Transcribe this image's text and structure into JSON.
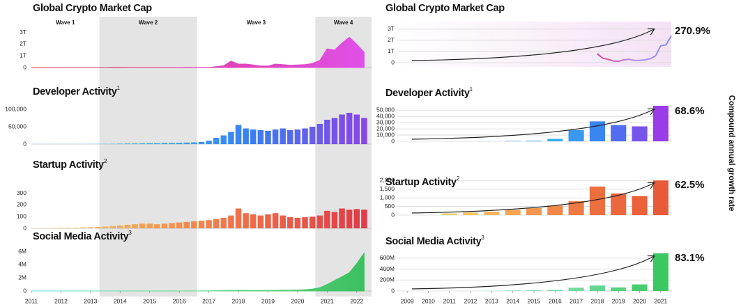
{
  "side_label": "Compound annual growth rate",
  "waves": [
    {
      "label": "Wave 1",
      "start": 2011,
      "end": 2013.3,
      "shaded": false
    },
    {
      "label": "Wave 2",
      "start": 2013.3,
      "end": 2016.6,
      "shaded": true
    },
    {
      "label": "Wave 3",
      "start": 2016.6,
      "end": 2020.6,
      "shaded": false
    },
    {
      "label": "Wave 4",
      "start": 2020.6,
      "end": 2022.5,
      "shaded": true
    }
  ],
  "chart_data": [
    {
      "type": "area",
      "title": "Global Crypto Market Cap",
      "x": [
        2011,
        2011.25,
        2011.5,
        2011.75,
        2012,
        2012.25,
        2012.5,
        2012.75,
        2013,
        2013.25,
        2013.5,
        2013.75,
        2014,
        2014.25,
        2014.5,
        2014.75,
        2015,
        2015.25,
        2015.5,
        2015.75,
        2016,
        2016.25,
        2016.5,
        2016.75,
        2017,
        2017.25,
        2017.5,
        2017.75,
        2018,
        2018.25,
        2018.5,
        2018.75,
        2019,
        2019.25,
        2019.5,
        2019.75,
        2020,
        2020.25,
        2020.5,
        2020.75,
        2021,
        2021.25,
        2021.5,
        2021.75,
        2022,
        2022.25
      ],
      "values": [
        0.001,
        0.001,
        0.001,
        0.001,
        0.001,
        0.001,
        0.002,
        0.002,
        0.002,
        0.002,
        0.002,
        0.01,
        0.01,
        0.008,
        0.006,
        0.005,
        0.004,
        0.004,
        0.004,
        0.005,
        0.007,
        0.01,
        0.012,
        0.015,
        0.02,
        0.08,
        0.15,
        0.55,
        0.3,
        0.3,
        0.22,
        0.13,
        0.13,
        0.3,
        0.25,
        0.2,
        0.22,
        0.25,
        0.35,
        0.6,
        1.6,
        1.5,
        2.1,
        2.6,
        2.0,
        1.3
      ],
      "color_stops": [
        "#d6343c",
        "#e040a8",
        "#e050e8"
      ],
      "xlim": [
        2011,
        2022.5
      ],
      "ylim": [
        0,
        3.4
      ],
      "yticks": [
        0,
        {
          "value": 1,
          "label": "1T"
        },
        {
          "value": 2,
          "label": "2T"
        },
        {
          "value": 3,
          "label": "3T"
        }
      ],
      "grid": false
    },
    {
      "type": "bar",
      "title": "Developer Activity",
      "note_ref": "1",
      "x": [
        2011,
        2011.25,
        2011.5,
        2011.75,
        2012,
        2012.25,
        2012.5,
        2012.75,
        2013,
        2013.25,
        2013.5,
        2013.75,
        2014,
        2014.25,
        2014.5,
        2014.75,
        2015,
        2015.25,
        2015.5,
        2015.75,
        2016,
        2016.25,
        2016.5,
        2016.75,
        2017,
        2017.25,
        2017.5,
        2017.75,
        2018,
        2018.25,
        2018.5,
        2018.75,
        2019,
        2019.25,
        2019.5,
        2019.75,
        2020,
        2020.25,
        2020.5,
        2020.75,
        2021,
        2021.25,
        2021.5,
        2021.75,
        2022,
        2022.25
      ],
      "values": [
        200,
        200,
        300,
        300,
        400,
        400,
        500,
        500,
        600,
        700,
        800,
        1000,
        1500,
        2000,
        2000,
        2500,
        3000,
        3000,
        3500,
        3500,
        4000,
        4500,
        5000,
        6000,
        10000,
        18000,
        25000,
        35000,
        55000,
        45000,
        42000,
        40000,
        38000,
        42000,
        45000,
        40000,
        42000,
        45000,
        50000,
        58000,
        70000,
        75000,
        85000,
        90000,
        85000,
        75000
      ],
      "color_stops": [
        "#6fd3f5",
        "#38b4f0",
        "#3a7ef0",
        "#8a44e8"
      ],
      "xlim": [
        2011,
        2022.5
      ],
      "ylim": [
        0,
        114000
      ],
      "yticks": [
        0,
        {
          "value": 50000,
          "label": "50,000"
        },
        {
          "value": 100000,
          "label": "100,000"
        }
      ],
      "grid": false
    },
    {
      "type": "bar",
      "title": "Startup Activity",
      "note_ref": "2",
      "x": [
        2011,
        2011.25,
        2011.5,
        2011.75,
        2012,
        2012.25,
        2012.5,
        2012.75,
        2013,
        2013.25,
        2013.5,
        2013.75,
        2014,
        2014.25,
        2014.5,
        2014.75,
        2015,
        2015.25,
        2015.5,
        2015.75,
        2016,
        2016.25,
        2016.5,
        2016.75,
        2017,
        2017.25,
        2017.5,
        2017.75,
        2018,
        2018.25,
        2018.5,
        2018.75,
        2019,
        2019.25,
        2019.5,
        2019.75,
        2020,
        2020.25,
        2020.5,
        2020.75,
        2021,
        2021.25,
        2021.5,
        2021.75,
        2022,
        2022.25
      ],
      "values": [
        2,
        3,
        3,
        4,
        5,
        6,
        6,
        8,
        10,
        12,
        15,
        20,
        25,
        30,
        35,
        40,
        40,
        35,
        40,
        45,
        50,
        55,
        60,
        65,
        70,
        80,
        90,
        110,
        170,
        130,
        120,
        110,
        120,
        130,
        110,
        95,
        90,
        95,
        100,
        110,
        150,
        140,
        170,
        160,
        165,
        160
      ],
      "color_stops": [
        "#f8d070",
        "#f5a050",
        "#ee6a48",
        "#e23a48"
      ],
      "xlim": [
        2011,
        2022.5
      ],
      "ylim": [
        0,
        340
      ],
      "yticks": [
        0,
        100,
        200,
        300
      ],
      "grid": false
    },
    {
      "type": "area",
      "title": "Social Media Activity",
      "note_ref": "3",
      "x": [
        2011,
        2011.25,
        2011.5,
        2011.75,
        2012,
        2012.25,
        2012.5,
        2012.75,
        2013,
        2013.25,
        2013.5,
        2013.75,
        2014,
        2014.25,
        2014.5,
        2014.75,
        2015,
        2015.25,
        2015.5,
        2015.75,
        2016,
        2016.25,
        2016.5,
        2016.75,
        2017,
        2017.25,
        2017.5,
        2017.75,
        2018,
        2018.25,
        2018.5,
        2018.75,
        2019,
        2019.25,
        2019.5,
        2019.75,
        2020,
        2020.25,
        2020.5,
        2020.75,
        2021,
        2021.25,
        2021.5,
        2021.75,
        2022,
        2022.25
      ],
      "values": [
        0.01,
        0.01,
        0.01,
        0.01,
        0.01,
        0.01,
        0.01,
        0.01,
        0.01,
        0.01,
        0.01,
        0.01,
        0.01,
        0.01,
        0.01,
        0.01,
        0.01,
        0.01,
        0.01,
        0.01,
        0.01,
        0.01,
        0.01,
        0.01,
        0.03,
        0.05,
        0.08,
        0.1,
        0.12,
        0.1,
        0.08,
        0.08,
        0.1,
        0.1,
        0.12,
        0.12,
        0.15,
        0.2,
        0.3,
        0.5,
        1.0,
        1.6,
        2.2,
        2.8,
        4.2,
        5.8
      ],
      "color_stops": [
        "#7ee0d8",
        "#6ad890",
        "#3cc060"
      ],
      "xlim": [
        2011,
        2022.5
      ],
      "ylim": [
        0,
        6.5
      ],
      "yticks": [
        0,
        {
          "value": 2,
          "label": "2M"
        },
        {
          "value": 4,
          "label": "4M"
        },
        {
          "value": 6,
          "label": "6M"
        }
      ],
      "xticks": [
        2011,
        2012,
        2013,
        2014,
        2015,
        2016,
        2017,
        2018,
        2019,
        2020,
        2021,
        2022
      ],
      "grid": false
    },
    {
      "type": "line",
      "title": "Global Crypto Market Cap",
      "cagr": "270.9%",
      "x": [
        2018,
        2018.25,
        2018.5,
        2018.75,
        2019,
        2019.25,
        2019.5,
        2019.75,
        2020,
        2020.25,
        2020.5,
        2020.75,
        2021,
        2021.25,
        2021.5
      ],
      "values": [
        0.8,
        0.4,
        0.3,
        0.15,
        0.12,
        0.25,
        0.3,
        0.2,
        0.2,
        0.25,
        0.35,
        0.6,
        1.5,
        1.6,
        2.4
      ],
      "color_stops": [
        "#e04090",
        "#b090e8",
        "#8090f0"
      ],
      "xlim": [
        2008.5,
        2021.5
      ],
      "ylim": [
        0,
        3.3
      ],
      "yticks": [
        0,
        {
          "value": 1,
          "label": "1T"
        },
        {
          "value": 2,
          "label": "2T"
        },
        {
          "value": 3,
          "label": "3T"
        }
      ],
      "grid": true
    },
    {
      "type": "bar",
      "title": "Developer Activity",
      "note_ref": "1",
      "cagr": "68.6%",
      "x": [
        2013,
        2014,
        2015,
        2016,
        2017,
        2018,
        2019,
        2020,
        2021
      ],
      "values": [
        300,
        1000,
        1200,
        4000,
        18000,
        32000,
        26000,
        24000,
        57000
      ],
      "color_stops": [
        "#8fd6f5",
        "#38b4f0",
        "#3a7ef0",
        "#9a3ce8"
      ],
      "xlim": [
        2008.5,
        2021.5
      ],
      "ylim": [
        0,
        57000
      ],
      "yticks": [
        0,
        {
          "value": 10000,
          "label": "10,000"
        },
        {
          "value": 20000,
          "label": "20,000"
        },
        {
          "value": 30000,
          "label": "30,000"
        },
        {
          "value": 40000,
          "label": "40,000"
        },
        {
          "value": 50000,
          "label": "50,000"
        }
      ],
      "grid": true
    },
    {
      "type": "bar",
      "title": "Startup Activity",
      "note_ref": "2",
      "cagr": "62.5%",
      "x": [
        2011,
        2012,
        2013,
        2014,
        2015,
        2016,
        2017,
        2018,
        2019,
        2020,
        2021
      ],
      "values": [
        100,
        150,
        200,
        300,
        400,
        550,
        800,
        1650,
        1250,
        1100,
        2000
      ],
      "color_stops": [
        "#f8d070",
        "#f5a050",
        "#ee7040",
        "#e85a38"
      ],
      "xlim": [
        2008.5,
        2021.5
      ],
      "ylim": [
        0,
        2050
      ],
      "yticks": [
        0,
        500,
        {
          "value": 1000,
          "label": "1,000"
        },
        {
          "value": 1500,
          "label": "1,500"
        },
        {
          "value": 2000,
          "label": "2,000"
        }
      ],
      "grid": true
    },
    {
      "type": "bar",
      "title": "Social Media Activity",
      "note_ref": "3",
      "cagr": "83.1%",
      "x": [
        2013,
        2014,
        2015,
        2016,
        2017,
        2018,
        2019,
        2020,
        2021
      ],
      "values": [
        5,
        10,
        15,
        20,
        60,
        100,
        65,
        120,
        690
      ],
      "color_stops": [
        "#8ee8d8",
        "#70dca0",
        "#3cc860"
      ],
      "xlim": [
        2008.5,
        2021.5
      ],
      "ylim": [
        0,
        700
      ],
      "yticks": [
        0,
        {
          "value": 200,
          "label": "200M"
        },
        {
          "value": 400,
          "label": "400M"
        },
        {
          "value": 600,
          "label": "600M"
        }
      ],
      "xticks": [
        2009,
        2010,
        2011,
        2012,
        2013,
        2014,
        2015,
        2016,
        2017,
        2018,
        2019,
        2020,
        2021
      ],
      "grid": true
    }
  ]
}
